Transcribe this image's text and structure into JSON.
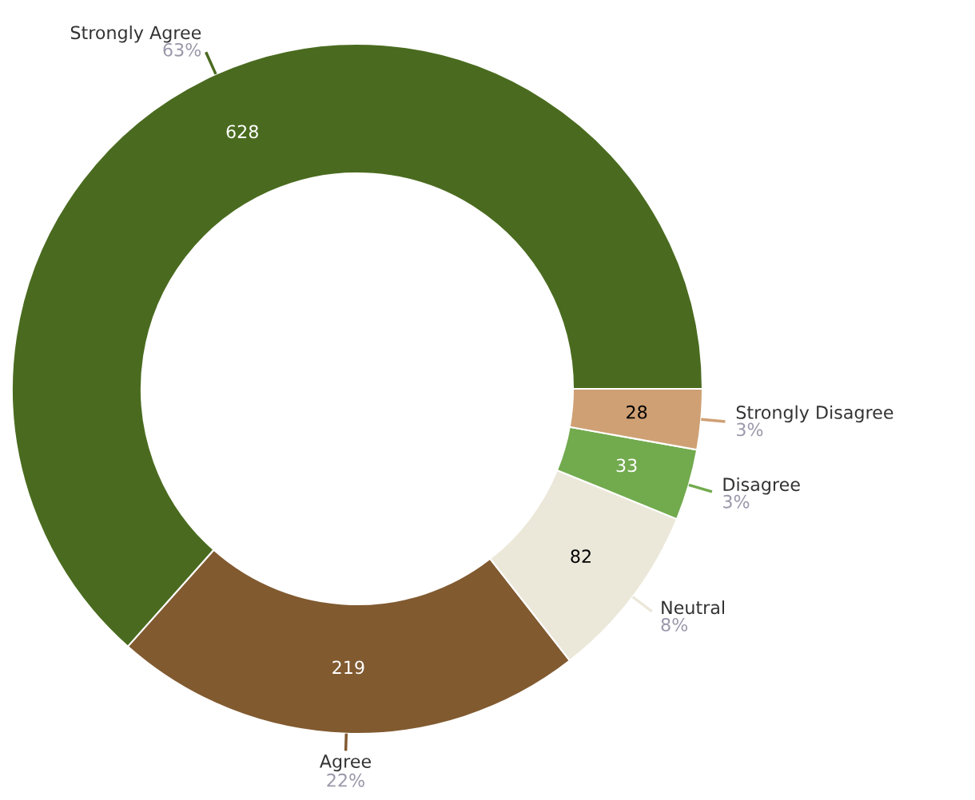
{
  "chart_data": {
    "type": "donut",
    "categories": [
      "Strongly Agree",
      "Agree",
      "Neutral",
      "Disagree",
      "Strongly Disagree"
    ],
    "values": [
      628,
      219,
      82,
      33,
      28
    ],
    "colors": [
      "#4a6b1f",
      "#815a30",
      "#ebe8da",
      "#72aa4e",
      "#cfa074"
    ],
    "data_labels": true,
    "legend": false,
    "annotations": [
      {
        "text": "63%",
        "x": "Strongly Agree"
      },
      {
        "text": "22%",
        "x": "Agree"
      },
      {
        "text": "8%",
        "x": "Neutral"
      },
      {
        "text": "3%",
        "x": "Disagree"
      },
      {
        "text": "3%",
        "x": "Strongly Disagree"
      }
    ]
  }
}
